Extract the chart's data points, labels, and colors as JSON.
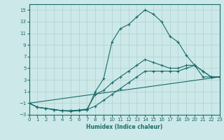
{
  "xlabel": "Humidex (Indice chaleur)",
  "background_color": "#cce8e8",
  "grid_color": "#b0d0d0",
  "line_color": "#1a6b6b",
  "xlim": [
    0,
    23
  ],
  "ylim": [
    -3,
    16
  ],
  "xticks": [
    0,
    1,
    2,
    3,
    4,
    5,
    6,
    7,
    8,
    9,
    10,
    11,
    12,
    13,
    14,
    15,
    16,
    17,
    18,
    19,
    20,
    21,
    22,
    23
  ],
  "yticks": [
    -3,
    -1,
    1,
    3,
    5,
    7,
    9,
    11,
    13,
    15
  ],
  "line1_x": [
    0,
    1,
    2,
    3,
    4,
    5,
    6,
    7,
    8,
    9,
    10,
    11,
    12,
    13,
    14,
    15,
    16,
    17,
    18,
    19,
    20,
    21,
    22,
    23
  ],
  "line1_y": [
    -1,
    -1.7,
    -1.9,
    -2.1,
    -2.3,
    -2.3,
    -2.2,
    -2.2,
    1.0,
    3.2,
    9.5,
    11.8,
    12.5,
    13.8,
    15.0,
    14.3,
    13.0,
    10.5,
    9.5,
    7.2,
    5.5,
    4.5,
    3.5,
    3.5
  ],
  "line2_x": [
    0,
    1,
    2,
    3,
    4,
    5,
    6,
    7,
    8,
    9,
    10,
    11,
    12,
    13,
    14,
    15,
    16,
    17,
    18,
    19,
    20,
    21,
    22,
    23
  ],
  "line2_y": [
    -1,
    -1.7,
    -1.9,
    -2.1,
    -2.3,
    -2.3,
    -2.2,
    -2.0,
    0.5,
    1.2,
    2.5,
    3.5,
    4.5,
    5.5,
    6.5,
    6.0,
    5.5,
    5.0,
    5.0,
    5.5,
    5.5,
    4.5,
    3.5,
    3.5
  ],
  "line3_x": [
    0,
    23
  ],
  "line3_y": [
    -1,
    3.5
  ],
  "line4_x": [
    0,
    1,
    2,
    3,
    4,
    5,
    6,
    7,
    8,
    9,
    10,
    11,
    12,
    13,
    14,
    15,
    16,
    17,
    18,
    19,
    20,
    21,
    22,
    23
  ],
  "line4_y": [
    -1,
    -1.7,
    -1.9,
    -2.1,
    -2.3,
    -2.4,
    -2.3,
    -2.1,
    -1.5,
    -0.5,
    0.5,
    1.5,
    2.5,
    3.5,
    4.5,
    4.5,
    4.5,
    4.5,
    4.5,
    5.0,
    5.5,
    3.5,
    3.5,
    3.5
  ]
}
